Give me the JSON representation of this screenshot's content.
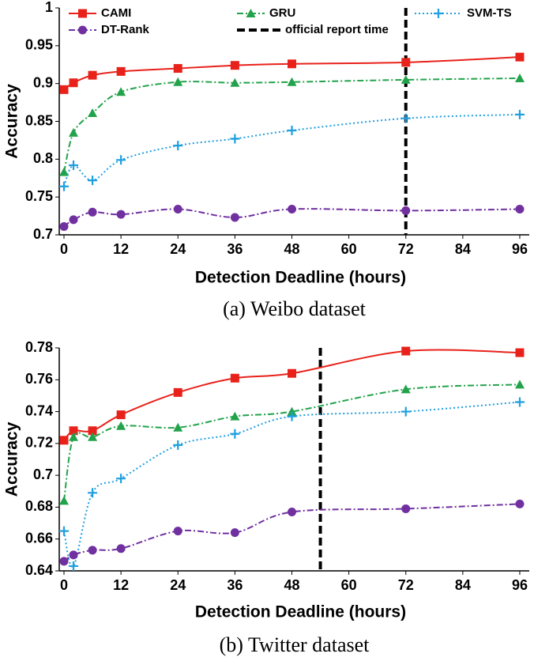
{
  "chart_data": [
    {
      "type": "line",
      "caption": "(a) Weibo dataset",
      "x_label": "Detection Deadline (hours)",
      "y_label": "Accuracy",
      "x": [
        0,
        2,
        6,
        12,
        24,
        36,
        48,
        72,
        96
      ],
      "xlim": [
        -1,
        98
      ],
      "xticks": [
        0,
        12,
        24,
        36,
        48,
        60,
        72,
        84,
        96
      ],
      "ylim": [
        0.7,
        1
      ],
      "yticks": [
        0.7,
        0.75,
        0.8,
        0.85,
        0.9,
        0.95,
        1
      ],
      "smooth": true,
      "legend": "top",
      "reference_line": {
        "name": "official report time",
        "x": 72,
        "color": "#000000"
      },
      "series": [
        {
          "name": "CAMI",
          "color": "#e8221b",
          "marker": "square",
          "line_style": "solid",
          "values": [
            0.892,
            0.901,
            0.911,
            0.916,
            0.92,
            0.924,
            0.926,
            0.928,
            0.935
          ]
        },
        {
          "name": "GRU",
          "color": "#22a34b",
          "marker": "triangle",
          "line_style": "dashdot",
          "values": [
            0.783,
            0.835,
            0.861,
            0.889,
            0.902,
            0.901,
            0.902,
            0.905,
            0.907
          ]
        },
        {
          "name": "SVM-TS",
          "color": "#1f9fdf",
          "marker": "plus",
          "line_style": "dotted",
          "values": [
            0.764,
            0.792,
            0.772,
            0.799,
            0.818,
            0.827,
            0.838,
            0.854,
            0.859
          ]
        },
        {
          "name": "DT-Rank",
          "color": "#7030a0",
          "marker": "circle",
          "line_style": "dashdot",
          "values": [
            0.711,
            0.72,
            0.73,
            0.727,
            0.734,
            0.723,
            0.734,
            0.732,
            0.734
          ]
        }
      ]
    },
    {
      "type": "line",
      "caption": "(b) Twitter dataset",
      "x_label": "Detection Deadline (hours)",
      "y_label": "Accuracy",
      "x": [
        0,
        2,
        6,
        12,
        24,
        36,
        48,
        72,
        96
      ],
      "xlim": [
        -1,
        98
      ],
      "xticks": [
        0,
        12,
        24,
        36,
        48,
        60,
        72,
        84,
        96
      ],
      "ylim": [
        0.64,
        0.78
      ],
      "yticks": [
        0.64,
        0.66,
        0.68,
        0.7,
        0.72,
        0.74,
        0.76,
        0.78
      ],
      "smooth": true,
      "reference_line": {
        "x": 54,
        "color": "#000000"
      },
      "series": [
        {
          "color": "#e8221b",
          "marker": "square",
          "line_style": "solid",
          "values": [
            0.722,
            0.728,
            0.728,
            0.738,
            0.752,
            0.761,
            0.764,
            0.778,
            0.777
          ]
        },
        {
          "color": "#22a34b",
          "marker": "triangle",
          "line_style": "dashdot",
          "values": [
            0.684,
            0.724,
            0.724,
            0.731,
            0.73,
            0.737,
            0.74,
            0.754,
            0.757
          ]
        },
        {
          "color": "#1f9fdf",
          "marker": "plus",
          "line_style": "dotted",
          "values": [
            0.665,
            0.643,
            0.689,
            0.698,
            0.719,
            0.726,
            0.737,
            0.74,
            0.746
          ]
        },
        {
          "color": "#7030a0",
          "marker": "circle",
          "line_style": "dashdot",
          "values": [
            0.646,
            0.65,
            0.653,
            0.654,
            0.665,
            0.664,
            0.677,
            0.679,
            0.682
          ]
        }
      ]
    }
  ]
}
